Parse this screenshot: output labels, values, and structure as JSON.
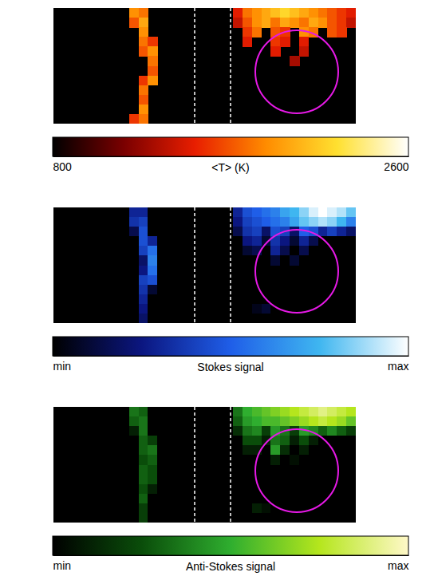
{
  "chart_data": [
    {
      "type": "heatmap",
      "colorbar_label": "<T> (K)",
      "colorbar_range": [
        800,
        2600
      ],
      "colorbar_ticks": [
        800,
        2600
      ],
      "cells": [
        [
          null,
          null,
          null,
          null,
          null,
          null,
          null,
          null,
          1900,
          1800,
          null,
          null,
          null,
          null,
          null,
          null,
          null,
          null,
          null,
          1500,
          1800,
          1900,
          2000,
          2100,
          2200,
          2100,
          2000,
          1900,
          1800,
          1700,
          1600,
          1500
        ],
        [
          null,
          null,
          null,
          null,
          null,
          null,
          null,
          null,
          1700,
          2000,
          null,
          null,
          null,
          null,
          null,
          null,
          null,
          null,
          null,
          1400,
          1700,
          1900,
          2000,
          1800,
          2000,
          1900,
          1800,
          2000,
          1900,
          1700,
          1600,
          1400
        ],
        [
          null,
          null,
          null,
          null,
          null,
          null,
          null,
          null,
          null,
          1900,
          null,
          null,
          null,
          null,
          null,
          null,
          null,
          null,
          null,
          null,
          1600,
          1800,
          null,
          1700,
          1600,
          null,
          1900,
          1800,
          null,
          1700,
          1600,
          null
        ],
        [
          null,
          null,
          null,
          null,
          null,
          null,
          null,
          null,
          null,
          1800,
          1600,
          null,
          null,
          null,
          null,
          null,
          null,
          null,
          null,
          null,
          1500,
          null,
          null,
          1600,
          1500,
          null,
          1500,
          null,
          null,
          null,
          null,
          null
        ],
        [
          null,
          null,
          null,
          null,
          null,
          null,
          null,
          null,
          null,
          1700,
          1900,
          null,
          null,
          null,
          null,
          null,
          null,
          null,
          null,
          null,
          null,
          null,
          null,
          1500,
          null,
          null,
          1400,
          null,
          null,
          null,
          null,
          null
        ],
        [
          null,
          null,
          null,
          null,
          null,
          null,
          null,
          null,
          null,
          null,
          1800,
          null,
          null,
          null,
          null,
          null,
          null,
          null,
          null,
          null,
          null,
          null,
          null,
          null,
          null,
          1300,
          null,
          null,
          null,
          null,
          null,
          null
        ],
        [
          null,
          null,
          null,
          null,
          null,
          null,
          null,
          null,
          null,
          null,
          1700,
          null,
          null,
          null,
          null,
          null,
          null,
          null,
          null,
          null,
          null,
          null,
          null,
          null,
          null,
          null,
          null,
          null,
          null,
          null,
          null,
          null
        ],
        [
          null,
          null,
          null,
          null,
          null,
          null,
          null,
          null,
          null,
          1600,
          1900,
          null,
          null,
          null,
          null,
          null,
          null,
          null,
          null,
          null,
          null,
          null,
          null,
          null,
          null,
          null,
          null,
          null,
          null,
          null,
          null,
          null
        ],
        [
          null,
          null,
          null,
          null,
          null,
          null,
          null,
          null,
          null,
          1800,
          null,
          null,
          null,
          null,
          null,
          null,
          null,
          null,
          null,
          null,
          null,
          null,
          null,
          null,
          null,
          null,
          null,
          null,
          null,
          null,
          null,
          null
        ],
        [
          null,
          null,
          null,
          null,
          null,
          null,
          null,
          null,
          null,
          1700,
          null,
          null,
          null,
          null,
          null,
          null,
          null,
          null,
          null,
          null,
          null,
          null,
          null,
          null,
          null,
          null,
          null,
          null,
          null,
          null,
          null,
          null
        ],
        [
          null,
          null,
          null,
          null,
          null,
          null,
          null,
          null,
          null,
          1900,
          null,
          null,
          null,
          null,
          null,
          null,
          null,
          null,
          null,
          null,
          null,
          null,
          null,
          null,
          null,
          null,
          null,
          null,
          null,
          null,
          null,
          null
        ],
        [
          null,
          null,
          null,
          null,
          null,
          null,
          null,
          null,
          1600,
          1800,
          null,
          null,
          null,
          null,
          null,
          null,
          null,
          null,
          null,
          null,
          null,
          null,
          null,
          null,
          null,
          null,
          null,
          null,
          null,
          null,
          null,
          null
        ]
      ]
    },
    {
      "type": "heatmap",
      "colorbar_label": "Stokes signal",
      "colorbar_range": [
        0,
        1
      ],
      "colorbar_ticks": [
        {
          "value": 0,
          "label": "min"
        },
        {
          "value": 1,
          "label": "max"
        }
      ],
      "cells": [
        [
          0,
          0,
          0,
          0,
          0,
          0,
          0,
          0,
          0.3,
          0.3,
          0,
          0,
          0,
          0,
          0,
          0,
          0,
          0,
          0,
          0.3,
          0.45,
          0.5,
          0.55,
          0.6,
          0.7,
          0.75,
          0.85,
          0.95,
          1,
          0.95,
          0.9,
          0.8
        ],
        [
          0,
          0,
          0,
          0,
          0,
          0,
          0,
          0,
          0.35,
          0.4,
          0,
          0,
          0,
          0,
          0,
          0,
          0,
          0,
          0,
          0.25,
          0.4,
          0.45,
          0.5,
          0.55,
          0.6,
          0.7,
          0.8,
          0.85,
          0.9,
          0.85,
          0.75,
          0.6
        ],
        [
          0,
          0,
          0,
          0,
          0,
          0,
          0,
          0,
          0.15,
          0.45,
          0,
          0,
          0,
          0,
          0,
          0,
          0,
          0,
          0,
          0.15,
          0.35,
          0.4,
          0.2,
          0.45,
          0.4,
          0.2,
          0.5,
          0.45,
          0.3,
          0.4,
          0.3,
          0.2
        ],
        [
          0,
          0,
          0,
          0,
          0,
          0,
          0,
          0,
          0,
          0.45,
          0.3,
          0,
          0,
          0,
          0,
          0,
          0,
          0,
          0,
          0,
          0.25,
          0.3,
          0.1,
          0.35,
          0.25,
          0.1,
          0.3,
          0.15,
          0,
          0,
          0,
          0
        ],
        [
          0,
          0,
          0,
          0,
          0,
          0,
          0,
          0,
          0,
          0.4,
          0.55,
          0,
          0,
          0,
          0,
          0,
          0,
          0,
          0,
          0,
          0.1,
          0.15,
          0,
          0.3,
          0.15,
          0,
          0.15,
          0,
          0,
          0,
          0,
          0
        ],
        [
          0,
          0,
          0,
          0,
          0,
          0,
          0,
          0,
          0,
          0.2,
          0.6,
          0,
          0,
          0,
          0,
          0,
          0,
          0,
          0,
          0,
          0,
          0,
          0,
          0.1,
          0,
          0.1,
          0,
          0,
          0,
          0,
          0,
          0
        ],
        [
          0,
          0,
          0,
          0,
          0,
          0,
          0,
          0,
          0,
          0.25,
          0.55,
          0,
          0,
          0,
          0,
          0,
          0,
          0,
          0,
          0,
          0,
          0,
          0,
          0,
          0,
          0,
          0,
          0,
          0,
          0,
          0,
          0
        ],
        [
          0,
          0,
          0,
          0,
          0,
          0,
          0,
          0,
          0,
          0.4,
          0.45,
          0,
          0,
          0,
          0,
          0,
          0,
          0,
          0,
          0,
          0,
          0,
          0,
          0,
          0,
          0,
          0,
          0,
          0,
          0,
          0,
          0
        ],
        [
          0,
          0,
          0,
          0,
          0,
          0,
          0,
          0,
          0,
          0.35,
          0.1,
          0,
          0,
          0,
          0,
          0,
          0,
          0,
          0,
          0,
          0,
          0,
          0,
          0,
          0,
          0,
          0,
          0,
          0,
          0,
          0,
          0
        ],
        [
          0,
          0,
          0,
          0,
          0,
          0,
          0,
          0,
          0,
          0.3,
          0,
          0,
          0,
          0,
          0,
          0,
          0,
          0,
          0,
          0,
          0,
          0,
          0,
          0,
          0,
          0,
          0,
          0,
          0,
          0,
          0,
          0
        ],
        [
          0,
          0,
          0,
          0,
          0,
          0,
          0,
          0,
          0,
          0.25,
          0,
          0,
          0,
          0,
          0,
          0,
          0,
          0,
          0,
          0,
          0,
          0.05,
          0.1,
          0,
          0,
          0,
          0,
          0,
          0,
          0,
          0,
          0
        ],
        [
          0,
          0,
          0,
          0,
          0,
          0,
          0,
          0,
          0,
          0.2,
          0,
          0,
          0,
          0,
          0,
          0,
          0,
          0,
          0,
          0,
          0,
          0,
          0,
          0,
          0,
          0,
          0,
          0,
          0,
          0,
          0,
          0
        ]
      ]
    },
    {
      "type": "heatmap",
      "colorbar_label": "Anti-Stokes signal",
      "colorbar_range": [
        0,
        1
      ],
      "colorbar_ticks": [
        {
          "value": 0,
          "label": "min"
        },
        {
          "value": 1,
          "label": "max"
        }
      ],
      "cells": [
        [
          0,
          0,
          0,
          0,
          0,
          0,
          0,
          0,
          0.35,
          0.3,
          0,
          0,
          0,
          0,
          0,
          0,
          0,
          0,
          0,
          0.35,
          0.5,
          0.55,
          0.6,
          0.65,
          0.7,
          0.75,
          0.8,
          0.85,
          0.9,
          0.85,
          0.8,
          0.75
        ],
        [
          0,
          0,
          0,
          0,
          0,
          0,
          0,
          0,
          0.3,
          0.35,
          0,
          0,
          0,
          0,
          0,
          0,
          0,
          0,
          0,
          0.3,
          0.45,
          0.5,
          0.55,
          0.55,
          0.6,
          0.65,
          0.7,
          0.75,
          0.8,
          0.75,
          0.7,
          0.6
        ],
        [
          0,
          0,
          0,
          0,
          0,
          0,
          0,
          0,
          0.1,
          0.35,
          0,
          0,
          0,
          0,
          0,
          0,
          0,
          0,
          0,
          0.15,
          0.35,
          0.4,
          0.2,
          0.45,
          0.35,
          0.2,
          0.45,
          0.4,
          0.3,
          0.4,
          0.3,
          0.2
        ],
        [
          0,
          0,
          0,
          0,
          0,
          0,
          0,
          0,
          0,
          0.3,
          0.2,
          0,
          0,
          0,
          0,
          0,
          0,
          0,
          0,
          0,
          0.25,
          0.25,
          0.1,
          0.35,
          0.3,
          0.1,
          0.25,
          0.1,
          0,
          0,
          0,
          0
        ],
        [
          0,
          0,
          0,
          0,
          0,
          0,
          0,
          0,
          0,
          0.3,
          0.35,
          0,
          0,
          0,
          0,
          0,
          0,
          0,
          0,
          0,
          0.1,
          0.1,
          0,
          0.45,
          0.15,
          0,
          0.1,
          0,
          0,
          0,
          0,
          0
        ],
        [
          0,
          0,
          0,
          0,
          0,
          0,
          0,
          0,
          0,
          0.25,
          0.3,
          0,
          0,
          0,
          0,
          0,
          0,
          0,
          0,
          0,
          0,
          0,
          0,
          0.1,
          0,
          0.05,
          0,
          0,
          0,
          0,
          0,
          0
        ],
        [
          0,
          0,
          0,
          0,
          0,
          0,
          0,
          0,
          0,
          0.3,
          0.25,
          0,
          0,
          0,
          0,
          0,
          0,
          0,
          0,
          0,
          0,
          0,
          0,
          0,
          0,
          0,
          0,
          0,
          0,
          0,
          0,
          0
        ],
        [
          0,
          0,
          0,
          0,
          0,
          0,
          0,
          0,
          0,
          0.3,
          0.25,
          0,
          0,
          0,
          0,
          0,
          0,
          0,
          0,
          0,
          0,
          0,
          0,
          0,
          0,
          0,
          0,
          0,
          0,
          0,
          0,
          0
        ],
        [
          0,
          0,
          0,
          0,
          0,
          0,
          0,
          0,
          0,
          0.25,
          0.1,
          0,
          0,
          0,
          0,
          0,
          0,
          0,
          0,
          0,
          0,
          0,
          0,
          0,
          0,
          0,
          0,
          0,
          0,
          0,
          0,
          0
        ],
        [
          0,
          0,
          0,
          0,
          0,
          0,
          0,
          0,
          0,
          0.3,
          0,
          0,
          0,
          0,
          0,
          0,
          0,
          0,
          0,
          0,
          0,
          0,
          0,
          0,
          0,
          0,
          0,
          0,
          0,
          0,
          0,
          0
        ],
        [
          0,
          0,
          0,
          0,
          0,
          0,
          0,
          0,
          0,
          0.2,
          0,
          0,
          0,
          0,
          0,
          0,
          0,
          0,
          0,
          0,
          0,
          0.1,
          0.05,
          0,
          0,
          0,
          0,
          0,
          0,
          0,
          0,
          0
        ],
        [
          0,
          0,
          0,
          0,
          0,
          0,
          0,
          0,
          0,
          0.2,
          0,
          0,
          0,
          0,
          0,
          0,
          0,
          0,
          0,
          0,
          0,
          0,
          0,
          0,
          0,
          0,
          0,
          0,
          0,
          0,
          0,
          0
        ]
      ]
    }
  ]
}
